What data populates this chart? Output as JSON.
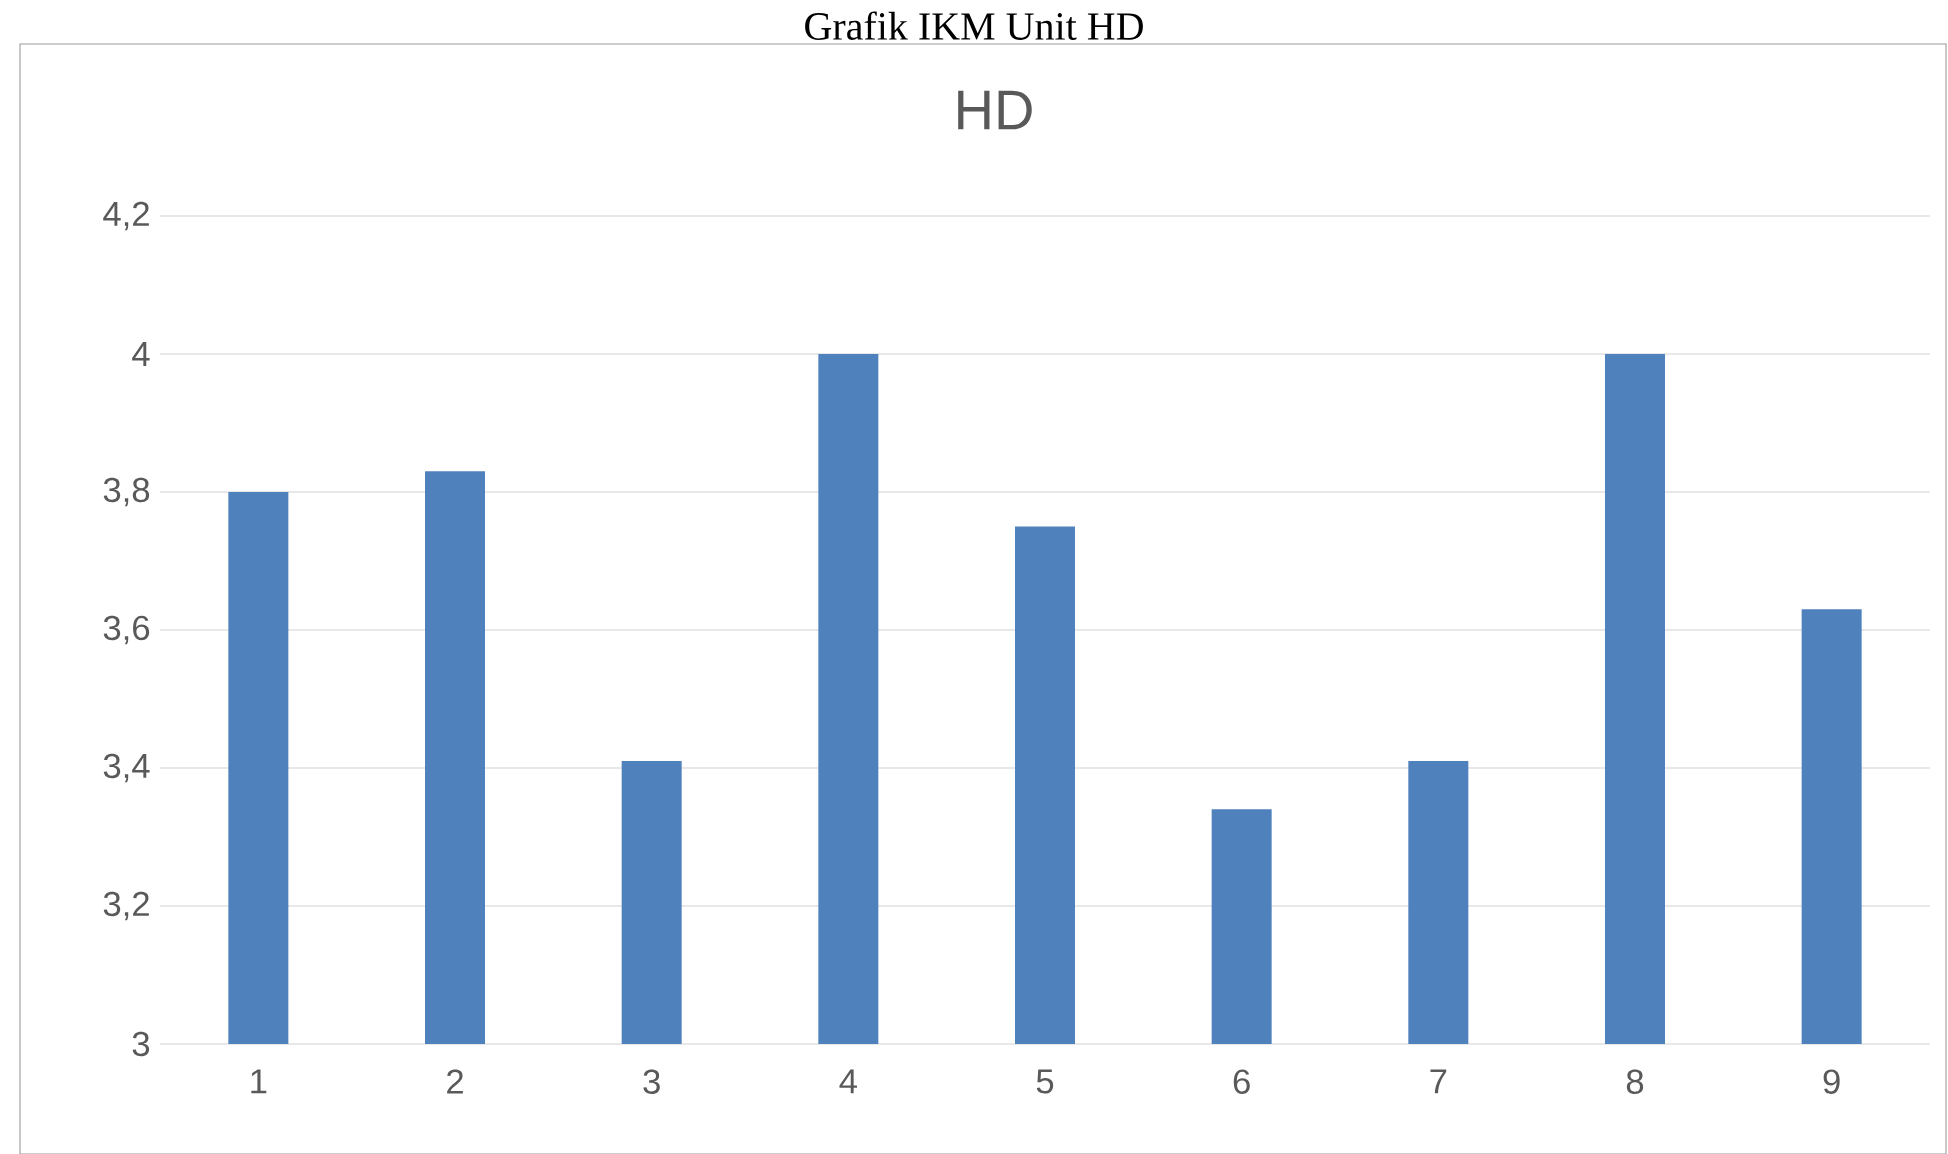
{
  "chart_data": {
    "type": "bar",
    "title": "Grafik IKM Unit HD",
    "subtitle": "HD",
    "categories": [
      "1",
      "2",
      "3",
      "4",
      "5",
      "6",
      "7",
      "8",
      "9"
    ],
    "values": [
      3.8,
      3.83,
      3.41,
      4.0,
      3.75,
      3.34,
      3.41,
      4.0,
      3.63
    ],
    "color": "#4f81bd",
    "ylim": [
      3,
      4.2
    ],
    "yticks": [
      3,
      {
        "value": 3.2,
        "label": "3,2"
      },
      {
        "value": 3.4,
        "label": "3,4"
      },
      {
        "value": 3.6,
        "label": "3,6"
      },
      {
        "value": 3.8,
        "label": "3,8"
      },
      4,
      {
        "value": 4.2,
        "label": "4,2"
      }
    ],
    "grid": "y"
  }
}
